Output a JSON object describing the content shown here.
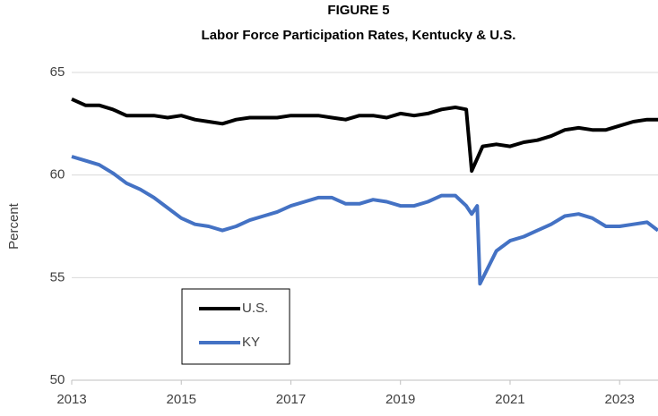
{
  "chart_data": {
    "type": "line",
    "title": "FIGURE 5",
    "subtitle": "Labor Force Participation Rates, Kentucky & U.S.",
    "y_label": "Percent",
    "xlim": [
      2013,
      2023.7
    ],
    "xticks": [
      2013,
      2015,
      2017,
      2019,
      2021,
      2023
    ],
    "ylim": [
      50,
      65
    ],
    "yticks": [
      50,
      55,
      60,
      65
    ],
    "grid": true,
    "legend": "bottom-left",
    "series": [
      {
        "name": "U.S.",
        "color": "#000000",
        "x": [
          2013,
          2013.25,
          2013.5,
          2013.75,
          2014,
          2014.25,
          2014.5,
          2014.75,
          2015,
          2015.25,
          2015.5,
          2015.75,
          2016,
          2016.25,
          2016.5,
          2016.75,
          2017,
          2017.25,
          2017.5,
          2017.75,
          2018,
          2018.25,
          2018.5,
          2018.75,
          2019,
          2019.25,
          2019.5,
          2019.75,
          2020,
          2020.2,
          2020.3,
          2020.5,
          2020.75,
          2021,
          2021.25,
          2021.5,
          2021.75,
          2022,
          2022.25,
          2022.5,
          2022.75,
          2023,
          2023.25,
          2023.5,
          2023.7
        ],
        "values": [
          63.7,
          63.4,
          63.4,
          63.2,
          62.9,
          62.9,
          62.9,
          62.8,
          62.9,
          62.7,
          62.6,
          62.5,
          62.7,
          62.8,
          62.8,
          62.8,
          62.9,
          62.9,
          62.9,
          62.8,
          62.7,
          62.9,
          62.9,
          62.8,
          63.0,
          62.9,
          63.0,
          63.2,
          63.3,
          63.2,
          60.2,
          61.4,
          61.5,
          61.4,
          61.6,
          61.7,
          61.9,
          62.2,
          62.3,
          62.2,
          62.2,
          62.4,
          62.6,
          62.7,
          62.7
        ]
      },
      {
        "name": "KY",
        "color": "#4472c4",
        "x": [
          2013,
          2013.25,
          2013.5,
          2013.75,
          2014,
          2014.25,
          2014.5,
          2014.75,
          2015,
          2015.25,
          2015.5,
          2015.75,
          2016,
          2016.25,
          2016.5,
          2016.75,
          2017,
          2017.25,
          2017.5,
          2017.75,
          2018,
          2018.25,
          2018.5,
          2018.75,
          2019,
          2019.25,
          2019.5,
          2019.75,
          2020,
          2020.2,
          2020.3,
          2020.4,
          2020.45,
          2020.75,
          2021,
          2021.25,
          2021.5,
          2021.75,
          2022,
          2022.25,
          2022.5,
          2022.75,
          2023,
          2023.25,
          2023.5,
          2023.7
        ],
        "values": [
          60.9,
          60.7,
          60.5,
          60.1,
          59.6,
          59.3,
          58.9,
          58.4,
          57.9,
          57.6,
          57.5,
          57.3,
          57.5,
          57.8,
          58.0,
          58.2,
          58.5,
          58.7,
          58.9,
          58.9,
          58.6,
          58.6,
          58.8,
          58.7,
          58.5,
          58.5,
          58.7,
          59.0,
          59.0,
          58.5,
          58.1,
          58.5,
          54.7,
          56.3,
          56.8,
          57.0,
          57.3,
          57.6,
          58.0,
          58.1,
          57.9,
          57.5,
          57.5,
          57.6,
          57.7,
          57.3
        ]
      }
    ]
  }
}
